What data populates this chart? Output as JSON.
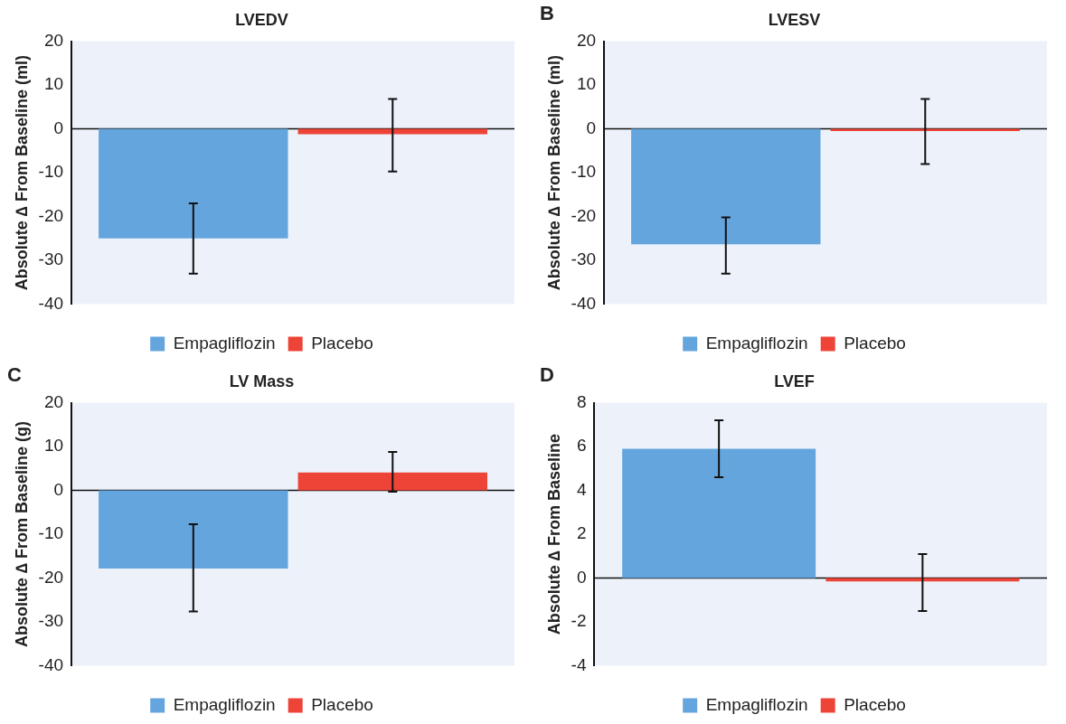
{
  "chart_data": [
    {
      "type": "bar",
      "title": "LVEDV",
      "ylabel": "Absolute ∆ From Baseline (ml)",
      "categories": [
        null
      ],
      "ylim": [
        -40,
        20
      ],
      "yticks": [
        -40,
        -30,
        -20,
        -10,
        0,
        10,
        20
      ],
      "legend": "bottom",
      "series": [
        {
          "name": "Empagliflozin",
          "color": "#65a5de",
          "values": [
            -25
          ],
          "errors": [
            [
              -33,
              -17
            ]
          ]
        },
        {
          "name": "Placebo",
          "color": "#ee4438",
          "values": [
            -1.2
          ],
          "errors": [
            [
              -9.7,
              6.8
            ]
          ]
        }
      ]
    },
    {
      "type": "bar",
      "title": "LVESV",
      "ylabel": "Absolute ∆ From Baseline (ml)",
      "annotations": [
        "B"
      ],
      "categories": [
        null
      ],
      "ylim": [
        -40,
        20
      ],
      "yticks": [
        -40,
        -30,
        -20,
        -10,
        0,
        10,
        20
      ],
      "legend": "bottom",
      "series": [
        {
          "name": "Empagliflozin",
          "color": "#65a5de",
          "values": [
            -26.3
          ],
          "errors": [
            [
              -33,
              -20.2
            ]
          ]
        },
        {
          "name": "Placebo",
          "color": "#ee4438",
          "values": [
            -0.5
          ],
          "errors": [
            [
              -8,
              6.8
            ]
          ]
        }
      ]
    },
    {
      "type": "bar",
      "title": "LV Mass",
      "ylabel": "Absolute ∆ From Baseline (g)",
      "annotations": [
        "C"
      ],
      "categories": [
        null
      ],
      "ylim": [
        -40,
        20
      ],
      "yticks": [
        -40,
        -30,
        -20,
        -10,
        0,
        10,
        20
      ],
      "legend": "bottom",
      "series": [
        {
          "name": "Empagliflozin",
          "color": "#65a5de",
          "values": [
            -17.8
          ],
          "errors": [
            [
              -27.6,
              -7.7
            ]
          ]
        },
        {
          "name": "Placebo",
          "color": "#ee4438",
          "values": [
            4.1
          ],
          "errors": [
            [
              -0.3,
              8.8
            ]
          ]
        }
      ]
    },
    {
      "type": "bar",
      "title": "LVEF",
      "ylabel": "Absolute ∆ From Baseline",
      "annotations": [
        "D"
      ],
      "categories": [
        null
      ],
      "ylim": [
        -4,
        8
      ],
      "yticks": [
        -4,
        -2,
        0,
        2,
        4,
        6,
        8
      ],
      "legend": "bottom",
      "series": [
        {
          "name": "Empagliflozin",
          "color": "#65a5de",
          "values": [
            5.9
          ],
          "errors": [
            [
              4.6,
              7.2
            ]
          ]
        },
        {
          "name": "Placebo",
          "color": "#ee4438",
          "values": [
            -0.15
          ],
          "errors": [
            [
              -1.5,
              1.1
            ]
          ]
        }
      ]
    }
  ]
}
